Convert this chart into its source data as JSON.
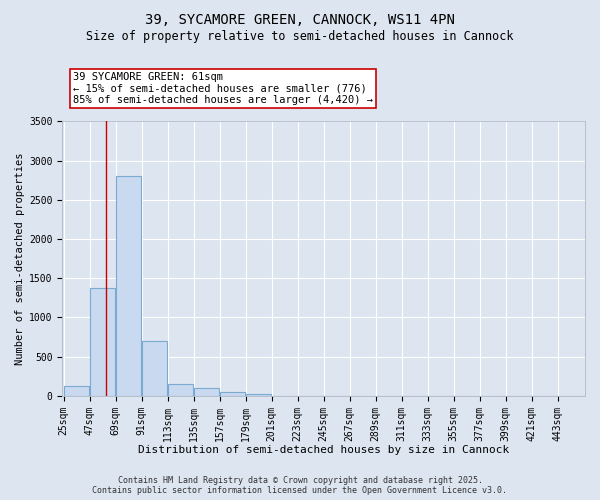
{
  "title": "39, SYCAMORE GREEN, CANNOCK, WS11 4PN",
  "subtitle": "Size of property relative to semi-detached houses in Cannock",
  "xlabel": "Distribution of semi-detached houses by size in Cannock",
  "ylabel": "Number of semi-detached properties",
  "bin_edges": [
    25,
    47,
    69,
    91,
    113,
    135,
    157,
    179,
    201,
    223,
    245,
    267,
    289,
    311,
    333,
    355,
    377,
    399,
    421,
    443,
    465
  ],
  "bar_heights": [
    130,
    1380,
    2800,
    700,
    150,
    100,
    55,
    30,
    0,
    0,
    0,
    0,
    0,
    0,
    0,
    0,
    0,
    0,
    0,
    0
  ],
  "bar_color": "#c8d9f0",
  "bar_edge_color": "#7aaad0",
  "vline_x": 61,
  "vline_color": "#cc0000",
  "ylim": [
    0,
    3500
  ],
  "annotation_text": "39 SYCAMORE GREEN: 61sqm\n← 15% of semi-detached houses are smaller (776)\n85% of semi-detached houses are larger (4,420) →",
  "bg_color": "#dde5f0",
  "plot_bg_color": "#dde5f0",
  "footer_line1": "Contains HM Land Registry data © Crown copyright and database right 2025.",
  "footer_line2": "Contains public sector information licensed under the Open Government Licence v3.0.",
  "title_fontsize": 10,
  "subtitle_fontsize": 8.5,
  "tick_fontsize": 7,
  "ylabel_fontsize": 7.5,
  "xlabel_fontsize": 8,
  "annotation_fontsize": 7.5,
  "footer_fontsize": 6
}
